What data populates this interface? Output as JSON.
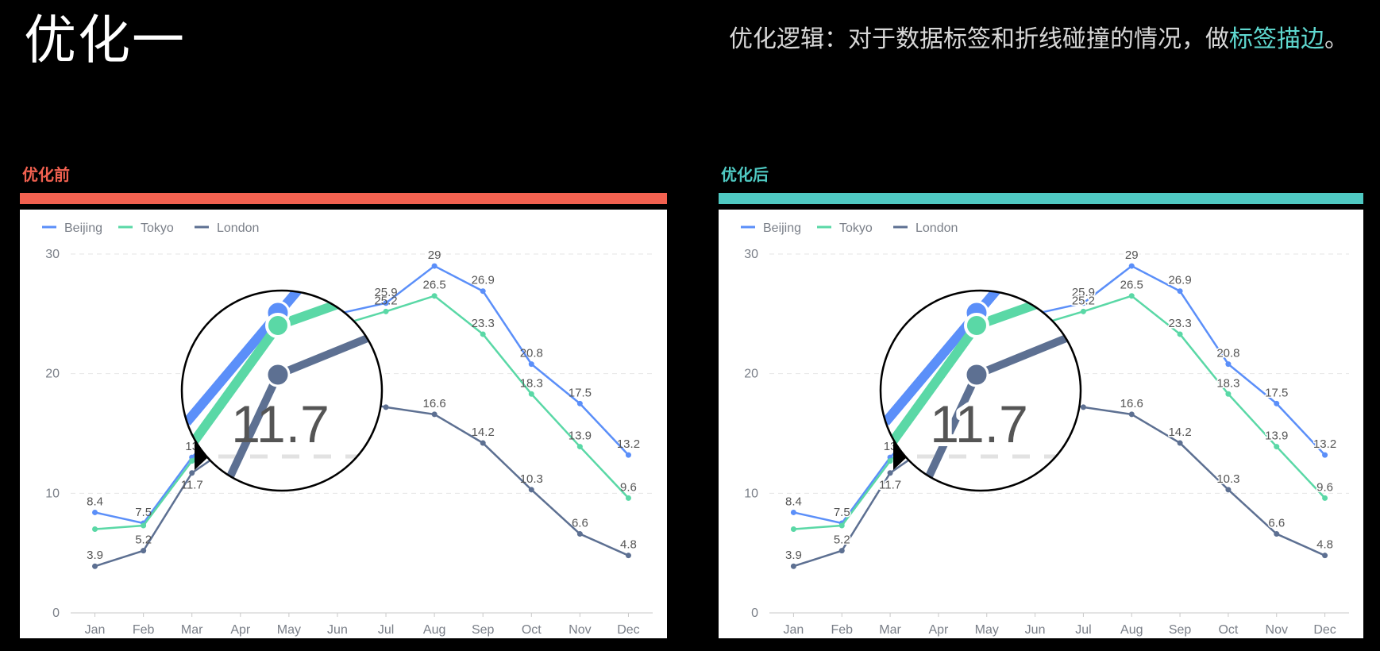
{
  "header": {
    "title": "优化一",
    "subtitle_prefix": "优化逻辑：对于数据标签和折线碰撞的情况，做",
    "subtitle_highlight": "标签描边",
    "subtitle_suffix": "。"
  },
  "colors": {
    "before": "#f26150",
    "after": "#4fc9c2",
    "highlight": "#5fd8cf"
  },
  "panels": [
    {
      "label": "优化前",
      "zoom_label": "11.7",
      "label_stroke": false
    },
    {
      "label": "优化后",
      "zoom_label": "11.7",
      "label_stroke": true
    }
  ],
  "chart_data": [
    {
      "type": "line",
      "categories": [
        "Jan",
        "Feb",
        "Mar",
        "Apr",
        "May",
        "Jun",
        "Jul",
        "Aug",
        "Sep",
        "Oct",
        "Nov",
        "Dec"
      ],
      "ylim": [
        0,
        30
      ],
      "yticks": [
        0,
        10,
        20,
        30
      ],
      "series": [
        {
          "name": "Beijing",
          "color": "#5b8ff9",
          "values": [
            8.4,
            7.5,
            13.0,
            17.4,
            24.0,
            25.0,
            25.9,
            29.0,
            26.9,
            20.8,
            17.5,
            13.2
          ],
          "labels": [
            "8.4",
            "7.5",
            "13",
            "",
            "",
            "",
            "25.9",
            "29",
            "26.9",
            "20.8",
            "17.5",
            "13.2"
          ]
        },
        {
          "name": "Tokyo",
          "color": "#5ad8a6",
          "values": [
            7.0,
            7.3,
            12.7,
            16.8,
            23.2,
            24.0,
            25.2,
            26.5,
            23.3,
            18.3,
            13.9,
            9.6
          ],
          "labels": [
            "",
            "",
            "",
            "",
            "",
            "",
            "25.2",
            "26.5",
            "23.3",
            "18.3",
            "13.9",
            "9.6"
          ]
        },
        {
          "name": "London",
          "color": "#5d7092",
          "values": [
            3.9,
            5.2,
            11.7,
            14.5,
            17.5,
            18.0,
            17.2,
            16.6,
            14.2,
            10.3,
            6.6,
            4.8
          ],
          "labels": [
            "3.9",
            "5.2",
            "11.7",
            "",
            "",
            "",
            "",
            "16.6",
            "14.2",
            "10.3",
            "6.6",
            "4.8"
          ]
        }
      ]
    },
    {
      "type": "line",
      "categories": [
        "Jan",
        "Feb",
        "Mar",
        "Apr",
        "May",
        "Jun",
        "Jul",
        "Aug",
        "Sep",
        "Oct",
        "Nov",
        "Dec"
      ],
      "ylim": [
        0,
        30
      ],
      "yticks": [
        0,
        10,
        20,
        30
      ],
      "series": [
        {
          "name": "Beijing",
          "color": "#5b8ff9",
          "values": [
            8.4,
            7.5,
            13.0,
            17.4,
            24.0,
            25.0,
            25.9,
            29.0,
            26.9,
            20.8,
            17.5,
            13.2
          ],
          "labels": [
            "8.4",
            "7.5",
            "13",
            "",
            "",
            "",
            "25.9",
            "29",
            "26.9",
            "20.8",
            "17.5",
            "13.2"
          ]
        },
        {
          "name": "Tokyo",
          "color": "#5ad8a6",
          "values": [
            7.0,
            7.3,
            12.7,
            16.8,
            23.2,
            24.0,
            25.2,
            26.5,
            23.3,
            18.3,
            13.9,
            9.6
          ],
          "labels": [
            "",
            "",
            "",
            "",
            "",
            "",
            "25.2",
            "26.5",
            "23.3",
            "18.3",
            "13.9",
            "9.6"
          ]
        },
        {
          "name": "London",
          "color": "#5d7092",
          "values": [
            3.9,
            5.2,
            11.7,
            14.5,
            17.5,
            18.0,
            17.2,
            16.6,
            14.2,
            10.3,
            6.6,
            4.8
          ],
          "labels": [
            "3.9",
            "5.2",
            "11.7",
            "",
            "",
            "",
            "",
            "16.6",
            "14.2",
            "10.3",
            "6.6",
            "4.8"
          ]
        }
      ]
    }
  ]
}
